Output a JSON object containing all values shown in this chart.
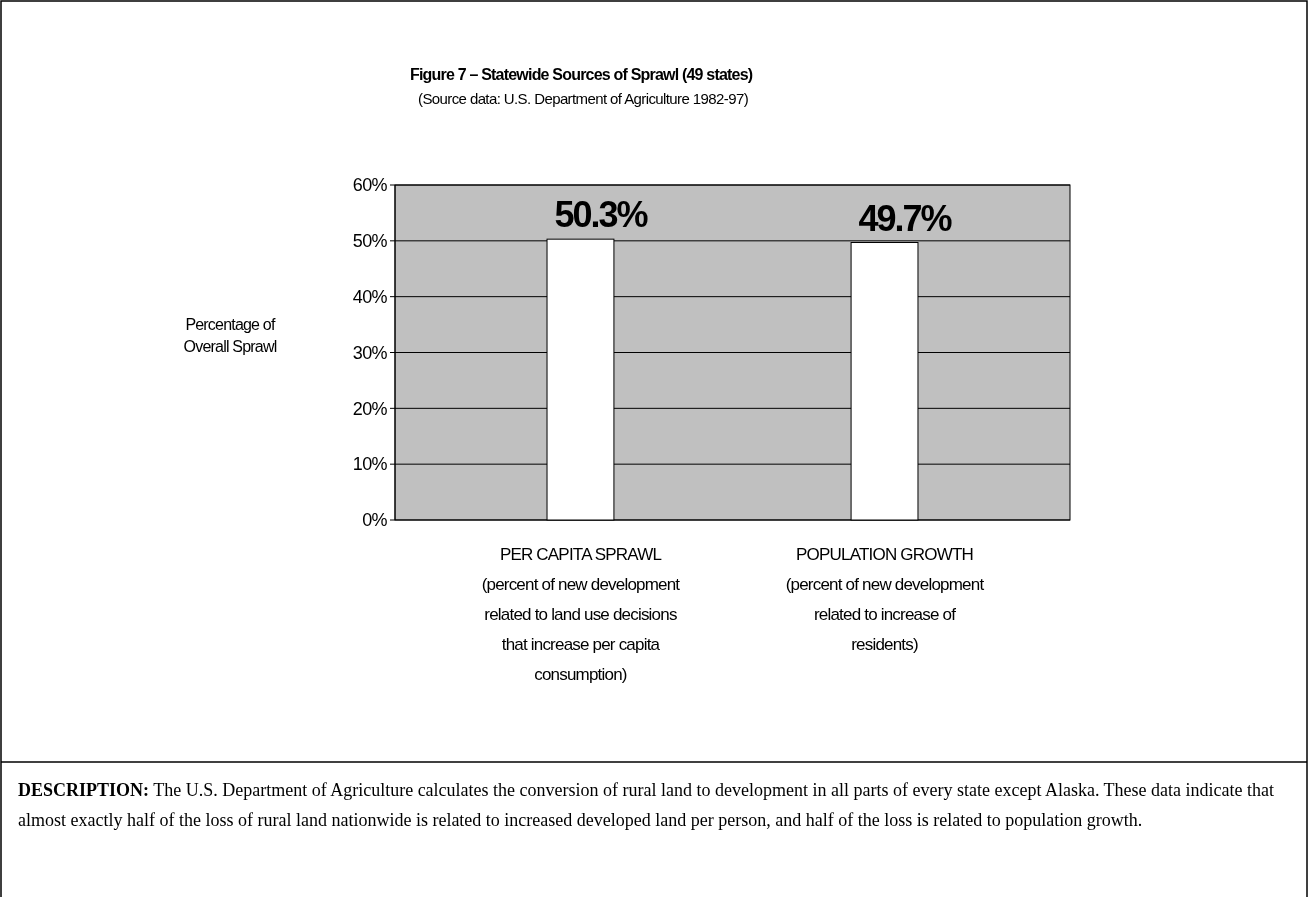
{
  "chart_data": {
    "type": "bar",
    "title": "Figure 7 – Statewide Sources of Sprawl (49 states)",
    "subtitle": "(Source data: U.S. Department of Agriculture 1982-97)",
    "ylabel": "Percentage of\nOverall Sprawl",
    "categories": [
      "PER CAPITA SPRAWL\n(percent of new development\nrelated to land use decisions\nthat increase per capita\nconsumption)",
      "POPULATION GROWTH\n(percent of new development\nrelated to increase of\nresidents)"
    ],
    "values": [
      50.3,
      49.7
    ],
    "value_labels": [
      "50.3%",
      "49.7%"
    ],
    "color": "#ffffff",
    "ylim": [
      0,
      60
    ],
    "yticks": [
      {
        "value": 0,
        "label": "0%"
      },
      {
        "value": 10,
        "label": "10%"
      },
      {
        "value": 20,
        "label": "20%"
      },
      {
        "value": 30,
        "label": "30%"
      },
      {
        "value": 40,
        "label": "40%"
      },
      {
        "value": 50,
        "label": "50%"
      },
      {
        "value": 60,
        "label": "60%"
      }
    ],
    "grid": "y",
    "annotations": [
      "DESCRIPTION: The U.S. Department of Agriculture calculates the conversion of rural land to development in all parts of every state except Alaska.  These data indicate that almost exactly half of the loss of rural land nationwide is related to increased developed land per person, and half of the loss is related to population growth."
    ]
  }
}
